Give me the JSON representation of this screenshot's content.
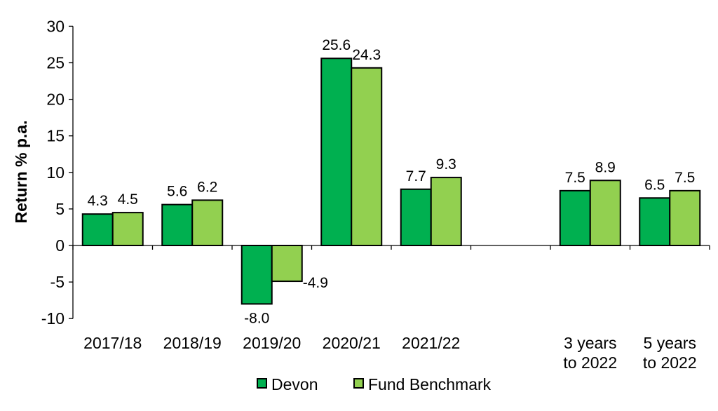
{
  "chart_data": {
    "type": "bar",
    "title": "",
    "xlabel": "",
    "ylabel": "Return % p.a.",
    "ylim": [
      -10,
      30
    ],
    "yticks": [
      -10,
      -5,
      0,
      5,
      10,
      15,
      20,
      25,
      30
    ],
    "grid": false,
    "legend_position": "bottom",
    "categories": [
      "2017/18",
      "2018/19",
      "2019/20",
      "2020/21",
      "2021/22",
      "",
      "3 years\nto 2022",
      "5 years\nto 2022"
    ],
    "series": [
      {
        "name": "Devon",
        "color": "#00B050",
        "values": [
          4.3,
          5.6,
          -8.0,
          25.6,
          7.7,
          null,
          7.5,
          6.5
        ],
        "labels": [
          "4.3",
          "5.6",
          "-8.0",
          "25.6",
          "7.7",
          "",
          "7.5",
          "6.5"
        ]
      },
      {
        "name": "Fund Benchmark",
        "color": "#92D050",
        "values": [
          4.5,
          6.2,
          -4.9,
          24.3,
          9.3,
          null,
          8.9,
          7.5
        ],
        "labels": [
          "4.5",
          "6.2",
          "-4.9",
          "24.3",
          "9.3",
          "",
          "8.9",
          "7.5"
        ]
      }
    ]
  }
}
